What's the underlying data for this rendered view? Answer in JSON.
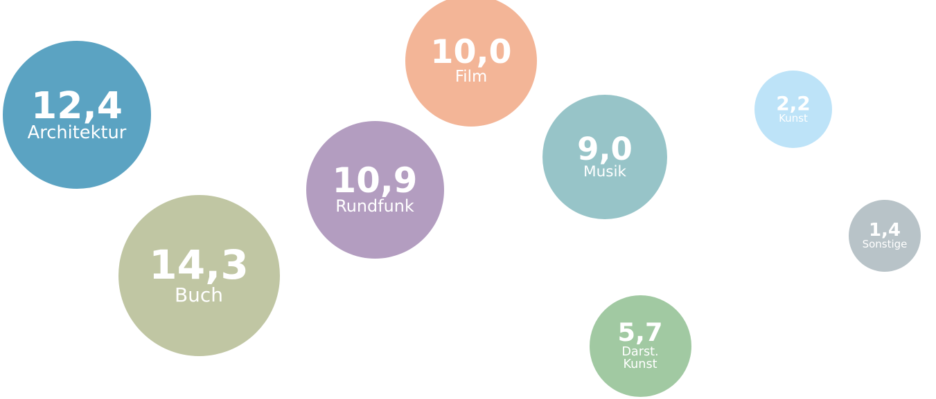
{
  "chart_data": {
    "type": "bubble",
    "categories": [
      "Architektur",
      "Buch",
      "Rundfunk",
      "Film",
      "Musik",
      "Darst. Kunst",
      "Kunst",
      "Sonstige"
    ],
    "values": [
      12.4,
      14.3,
      10.9,
      10.0,
      9.0,
      5.7,
      2.2,
      1.4
    ],
    "value_labels": [
      "12,4",
      "14,3",
      "10,9",
      "10,0",
      "9,0",
      "5,7",
      "2,2",
      "1,4"
    ],
    "colors": [
      "#5ba3c2",
      "#c0c6a3",
      "#b39dc0",
      "#f3b597",
      "#97c4c8",
      "#a1c9a2",
      "#bde3f8",
      "#b8c3c8"
    ]
  }
}
